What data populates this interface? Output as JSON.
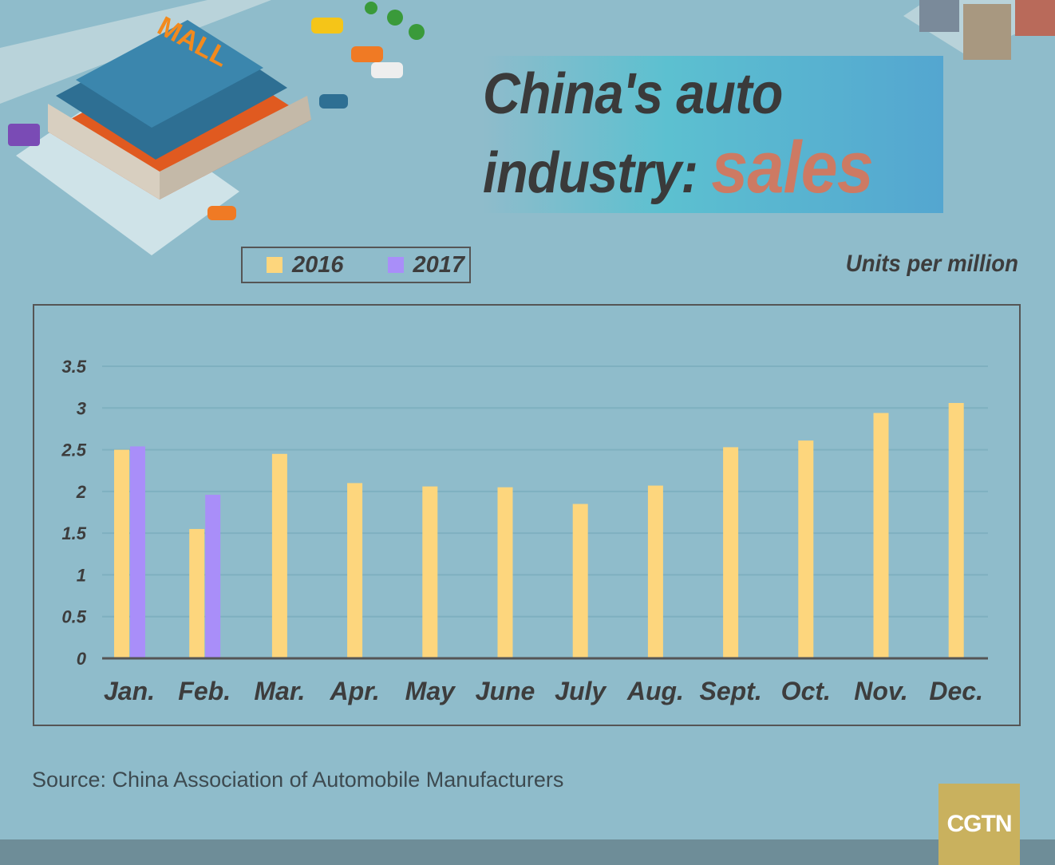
{
  "title": {
    "line1": "China's auto",
    "line2": "industry:",
    "highlight": "sales"
  },
  "source": "Source: China Association of Automobile Manufacturers",
  "logo": "CGTN",
  "illustration_sign": "MALL",
  "colors": {
    "background": "#8fbccb",
    "series_2016": "#fdd67d",
    "series_2017": "#a98ef9",
    "title_highlight": "#cd7a63"
  },
  "chart_data": {
    "type": "bar",
    "ylabel": "Units per million",
    "ylim": [
      0,
      3.5
    ],
    "yticks": [
      "0",
      "0.5",
      "1",
      "1.5",
      "2",
      "2.5",
      "3",
      "3.5"
    ],
    "grid": true,
    "legend_placement": "top-left",
    "categories": [
      "Jan.",
      "Feb.",
      "Mar.",
      "Apr.",
      "May",
      "June",
      "July",
      "Aug.",
      "Sept.",
      "Oct.",
      "Nov.",
      "Dec."
    ],
    "series": [
      {
        "name": "2016",
        "color": "#fdd67d",
        "values": [
          2.5,
          1.55,
          2.45,
          2.1,
          2.06,
          2.05,
          1.85,
          2.07,
          2.53,
          2.61,
          2.94,
          3.06
        ]
      },
      {
        "name": "2017",
        "color": "#a98ef9",
        "values": [
          2.54,
          1.96,
          null,
          null,
          null,
          null,
          null,
          null,
          null,
          null,
          null,
          null
        ]
      }
    ]
  }
}
